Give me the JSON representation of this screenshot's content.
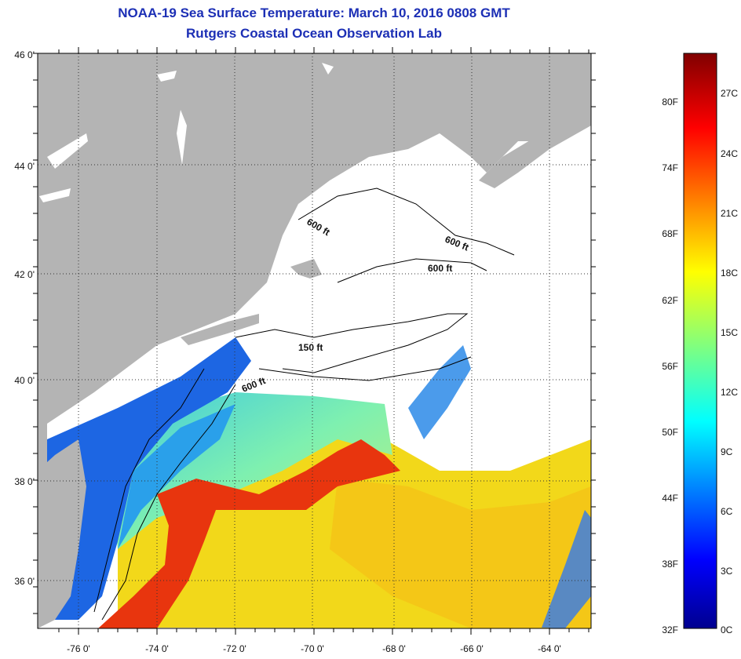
{
  "header": {
    "title": "NOAA-19 Sea Surface Temperature:  March 10, 2016 0808 GMT",
    "subtitle": "Rutgers Coastal Ocean Observation Lab"
  },
  "map": {
    "lat_labels": [
      "46 0'",
      "44 0'",
      "42 0'",
      "40 0'",
      "38 0'",
      "36 0'"
    ],
    "lon_labels": [
      "-76 0'",
      "-74 0'",
      "-72 0'",
      "-70 0'",
      "-68 0'",
      "-66 0'",
      "-64 0'"
    ],
    "lat_range": [
      35,
      46
    ],
    "lon_range": [
      -77,
      -63
    ],
    "contours": [
      {
        "label": "600 ft"
      },
      {
        "label": "600 ft"
      },
      {
        "label": "600 ft"
      },
      {
        "label": "150 ft"
      },
      {
        "label": "600 ft"
      }
    ],
    "colors": {
      "land": "#b4b4b4",
      "cloud_nodata": "#ffffff",
      "gulf_stream": "#e8350e",
      "shelf_cold": "#1a5fe0",
      "slope_water": "#55e0c8",
      "sargasso": "#f2d81a"
    }
  },
  "colorbar": {
    "fahrenheit_labels": [
      "80F",
      "74F",
      "68F",
      "62F",
      "56F",
      "50F",
      "44F",
      "38F",
      "32F"
    ],
    "celsius_labels": [
      "27C",
      "24C",
      "21C",
      "18C",
      "15C",
      "12C",
      "9C",
      "6C",
      "3C",
      "0C"
    ],
    "range_celsius": [
      0,
      28
    ],
    "colormap": "jet"
  }
}
